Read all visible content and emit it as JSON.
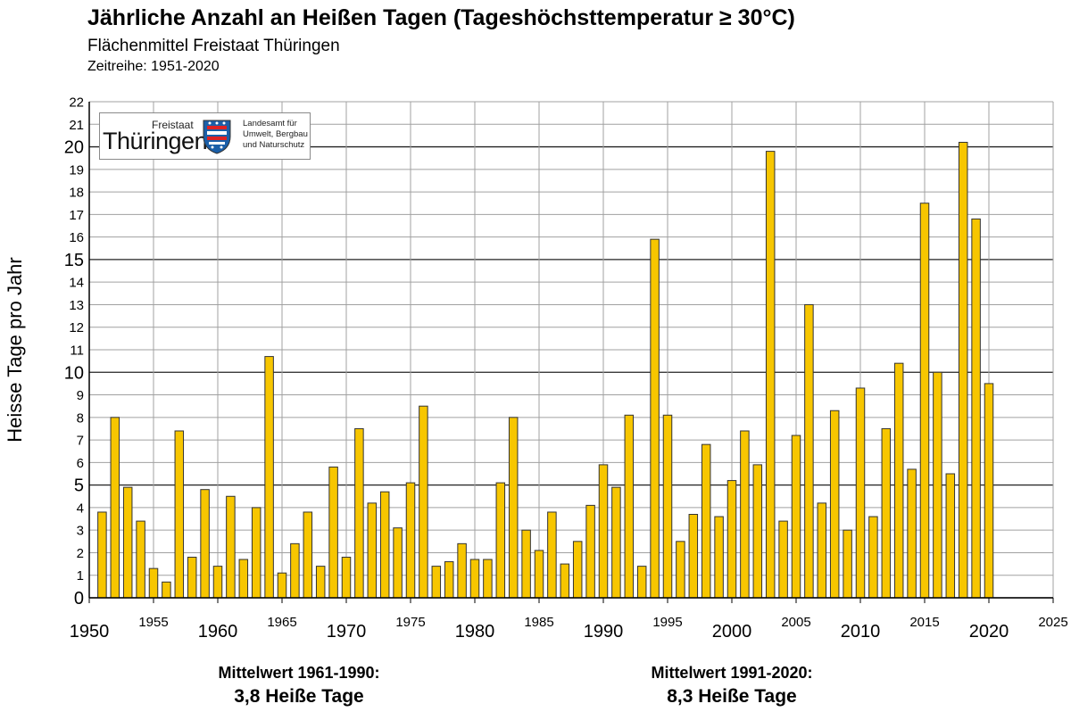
{
  "header": {
    "title": "Jährliche Anzahl an Heißen Tagen (Tageshöchsttemperatur ≥ 30°C)",
    "subtitle": "Flächenmittel Freistaat Thüringen",
    "period": "Zeitreihe: 1951-2020"
  },
  "logo": {
    "freistaat": "Freistaat",
    "name": "Thüringen",
    "agency_lines": [
      "Landesamt für",
      "Umwelt, Bergbau",
      "und Naturschutz"
    ]
  },
  "chart_data": {
    "type": "bar",
    "title": "Jährliche Anzahl an Heißen Tagen (Tageshöchsttemperatur ≥ 30°C)",
    "ylabel": "Heisse Tage pro Jahr",
    "xlabel": "",
    "xlim": [
      1950,
      2025
    ],
    "ylim": [
      0,
      22
    ],
    "grid": true,
    "bar_color": "#f7c600",
    "bar_edge_color": "#333333",
    "x_ticks_major": [
      "1950",
      "1960",
      "1970",
      "1980",
      "1990",
      "2000",
      "2010",
      "2020"
    ],
    "x_ticks_minor": [
      "1955",
      "1965",
      "1975",
      "1985",
      "1995",
      "2005",
      "2015",
      "2025"
    ],
    "y_ticks_major": [
      "0",
      "5",
      "10",
      "15",
      "20"
    ],
    "y_ticks_minor": [
      "1",
      "2",
      "3",
      "4",
      "6",
      "7",
      "8",
      "9",
      "11",
      "12",
      "13",
      "14",
      "16",
      "17",
      "18",
      "19",
      "21",
      "22"
    ],
    "years": [
      1951,
      1952,
      1953,
      1954,
      1955,
      1956,
      1957,
      1958,
      1959,
      1960,
      1961,
      1962,
      1963,
      1964,
      1965,
      1966,
      1967,
      1968,
      1969,
      1970,
      1971,
      1972,
      1973,
      1974,
      1975,
      1976,
      1977,
      1978,
      1979,
      1980,
      1981,
      1982,
      1983,
      1984,
      1985,
      1986,
      1987,
      1988,
      1989,
      1990,
      1991,
      1992,
      1993,
      1994,
      1995,
      1996,
      1997,
      1998,
      1999,
      2000,
      2001,
      2002,
      2003,
      2004,
      2005,
      2006,
      2007,
      2008,
      2009,
      2010,
      2011,
      2012,
      2013,
      2014,
      2015,
      2016,
      2017,
      2018,
      2019,
      2020
    ],
    "values": [
      3.8,
      8.0,
      4.9,
      3.4,
      1.3,
      0.7,
      7.4,
      1.8,
      4.8,
      1.4,
      4.5,
      1.7,
      4.0,
      10.7,
      1.1,
      2.4,
      3.8,
      1.4,
      5.8,
      1.8,
      7.5,
      4.2,
      4.7,
      3.1,
      5.1,
      8.5,
      1.4,
      1.6,
      2.4,
      1.7,
      1.7,
      5.1,
      8.0,
      3.0,
      2.1,
      3.8,
      1.5,
      2.5,
      4.1,
      5.9,
      4.9,
      8.1,
      1.4,
      15.9,
      8.1,
      2.5,
      3.7,
      6.8,
      3.6,
      5.2,
      7.4,
      5.9,
      19.8,
      3.4,
      7.2,
      13.0,
      4.2,
      8.3,
      3.0,
      9.3,
      3.6,
      7.5,
      10.4,
      5.7,
      17.5,
      10.0,
      5.5,
      20.2,
      16.8,
      9.5
    ]
  },
  "means": [
    {
      "label": "Mittelwert 1961-1990:",
      "value": "3,8 Heiße Tage"
    },
    {
      "label": "Mittelwert 1991-2020:",
      "value": "8,3 Heiße Tage"
    }
  ]
}
